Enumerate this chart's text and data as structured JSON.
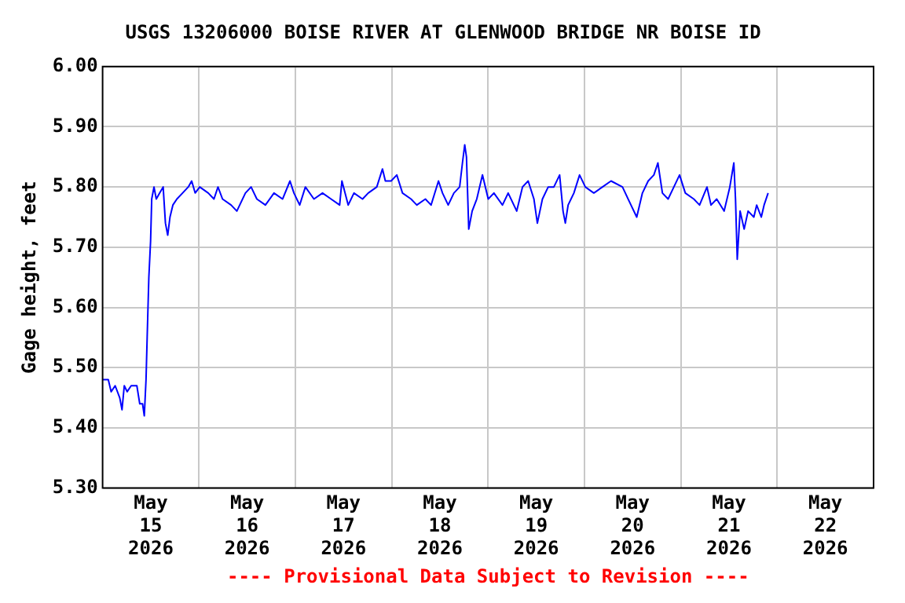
{
  "chart_data": {
    "type": "line",
    "title": "USGS 13206000 BOISE RIVER AT GLENWOOD BRIDGE NR BOISE ID",
    "ylabel": "Gage height, feet",
    "annotations": [
      "---- Provisional Data Subject to Revision ----"
    ],
    "xlim": [
      "2026-05-15T00:00",
      "2026-05-23T00:00"
    ],
    "xticks": [
      {
        "value": "2026-05-15T12:00",
        "label": "May\n15\n2026"
      },
      {
        "value": "2026-05-16T00:00",
        "label": null
      },
      {
        "value": "2026-05-16T12:00",
        "label": "May\n16\n2026"
      },
      {
        "value": "2026-05-17T00:00",
        "label": null
      },
      {
        "value": "2026-05-17T12:00",
        "label": "May\n17\n2026"
      },
      {
        "value": "2026-05-18T00:00",
        "label": null
      },
      {
        "value": "2026-05-18T12:00",
        "label": "May\n18\n2026"
      },
      {
        "value": "2026-05-19T00:00",
        "label": null
      },
      {
        "value": "2026-05-19T12:00",
        "label": "May\n19\n2026"
      },
      {
        "value": "2026-05-20T00:00",
        "label": null
      },
      {
        "value": "2026-05-20T12:00",
        "label": "May\n20\n2026"
      },
      {
        "value": "2026-05-21T00:00",
        "label": null
      },
      {
        "value": "2026-05-21T12:00",
        "label": "May\n21\n2026"
      },
      {
        "value": "2026-05-22T00:00",
        "label": null
      },
      {
        "value": "2026-05-22T12:00",
        "label": "May\n22\n2026"
      }
    ],
    "ylim": [
      5.3,
      6.0
    ],
    "yticks": [
      {
        "value": 5.3,
        "label": "5.30"
      },
      {
        "value": 5.4,
        "label": "5.40"
      },
      {
        "value": 5.5,
        "label": "5.50"
      },
      {
        "value": 5.6,
        "label": "5.60"
      },
      {
        "value": 5.7,
        "label": "5.70"
      },
      {
        "value": 5.8,
        "label": "5.80"
      },
      {
        "value": 5.9,
        "label": "5.90"
      },
      {
        "value": 6.0,
        "label": "6.00"
      }
    ],
    "grid": true,
    "legend": false,
    "marker": "none",
    "line_style": "solid",
    "series": [
      {
        "color": "#0000ff",
        "x": [
          "2026-05-15T00:00",
          "2026-05-15T01:25",
          "2026-05-15T02:08",
          "2026-05-15T03:08",
          "2026-05-15T04:16",
          "2026-05-15T04:50",
          "2026-05-15T05:24",
          "2026-05-15T06:07",
          "2026-05-15T07:07",
          "2026-05-15T08:32",
          "2026-05-15T09:15",
          "2026-05-15T09:57",
          "2026-05-15T10:23",
          "2026-05-15T10:49",
          "2026-05-15T11:06",
          "2026-05-15T11:31",
          "2026-05-15T11:57",
          "2026-05-15T12:14",
          "2026-05-15T12:48",
          "2026-05-15T13:22",
          "2026-05-15T14:13",
          "2026-05-15T15:05",
          "2026-05-15T15:39",
          "2026-05-15T16:13",
          "2026-05-15T16:47",
          "2026-05-15T17:30",
          "2026-05-15T18:30",
          "2026-05-15T19:55",
          "2026-05-15T21:20",
          "2026-05-15T22:11",
          "2026-05-15T23:03",
          "2026-05-16T00:11",
          "2026-05-16T02:19",
          "2026-05-16T03:44",
          "2026-05-16T04:44",
          "2026-05-16T05:52",
          "2026-05-16T08:00",
          "2026-05-16T09:26",
          "2026-05-16T11:34",
          "2026-05-16T12:59",
          "2026-05-16T14:25",
          "2026-05-16T16:33",
          "2026-05-16T18:41",
          "2026-05-16T20:49",
          "2026-05-16T22:40",
          "2026-05-16T23:39",
          "2026-05-17T01:05",
          "2026-05-17T02:30",
          "2026-05-17T04:38",
          "2026-05-17T06:46",
          "2026-05-17T08:54",
          "2026-05-17T11:02",
          "2026-05-17T11:36",
          "2026-05-17T13:10",
          "2026-05-17T14:36",
          "2026-05-17T16:44",
          "2026-05-17T18:09",
          "2026-05-17T20:17",
          "2026-05-17T21:42",
          "2026-05-17T22:25",
          "2026-05-17T23:51",
          "2026-05-18T01:16",
          "2026-05-18T02:41",
          "2026-05-18T04:49",
          "2026-05-18T06:15",
          "2026-05-18T08:23",
          "2026-05-18T09:48",
          "2026-05-18T11:39",
          "2026-05-18T12:39",
          "2026-05-18T14:04",
          "2026-05-18T15:29",
          "2026-05-18T16:55",
          "2026-05-18T17:37",
          "2026-05-18T18:11",
          "2026-05-18T18:37",
          "2026-05-18T19:11",
          "2026-05-18T20:02",
          "2026-05-18T21:11",
          "2026-05-18T22:36",
          "2026-05-19T00:02",
          "2026-05-19T01:27",
          "2026-05-19T03:35",
          "2026-05-19T05:00",
          "2026-05-19T07:08",
          "2026-05-19T08:34",
          "2026-05-19T09:59",
          "2026-05-19T11:25",
          "2026-05-19T12:16",
          "2026-05-19T13:32",
          "2026-05-19T14:58",
          "2026-05-19T16:23",
          "2026-05-19T17:49",
          "2026-05-19T18:40",
          "2026-05-19T19:14",
          "2026-05-19T19:56",
          "2026-05-19T21:22",
          "2026-05-19T22:47",
          "2026-05-20T00:13",
          "2026-05-20T02:20",
          "2026-05-20T04:29",
          "2026-05-20T06:37",
          "2026-05-20T09:28",
          "2026-05-20T11:35",
          "2026-05-20T13:01",
          "2026-05-20T14:26",
          "2026-05-20T15:52",
          "2026-05-20T17:17",
          "2026-05-20T18:17",
          "2026-05-20T19:25",
          "2026-05-20T20:50",
          "2026-05-20T22:16",
          "2026-05-20T23:41",
          "2026-05-21T01:07",
          "2026-05-21T03:14",
          "2026-05-21T04:40",
          "2026-05-21T06:31",
          "2026-05-21T07:31",
          "2026-05-21T08:56",
          "2026-05-21T10:47",
          "2026-05-21T12:12",
          "2026-05-21T13:12",
          "2026-05-21T13:37",
          "2026-05-21T14:03",
          "2026-05-21T14:46",
          "2026-05-21T15:46",
          "2026-05-21T16:45",
          "2026-05-21T18:11",
          "2026-05-21T18:53",
          "2026-05-21T20:02",
          "2026-05-21T20:44",
          "2026-05-21T21:44"
        ],
        "values": [
          5.48,
          5.48,
          5.46,
          5.47,
          5.45,
          5.43,
          5.47,
          5.46,
          5.47,
          5.47,
          5.44,
          5.44,
          5.42,
          5.48,
          5.55,
          5.65,
          5.71,
          5.78,
          5.8,
          5.78,
          5.79,
          5.8,
          5.74,
          5.72,
          5.75,
          5.77,
          5.78,
          5.79,
          5.8,
          5.81,
          5.79,
          5.8,
          5.79,
          5.78,
          5.8,
          5.78,
          5.77,
          5.76,
          5.79,
          5.8,
          5.78,
          5.77,
          5.79,
          5.78,
          5.81,
          5.79,
          5.77,
          5.8,
          5.78,
          5.79,
          5.78,
          5.77,
          5.81,
          5.77,
          5.79,
          5.78,
          5.79,
          5.8,
          5.83,
          5.81,
          5.81,
          5.82,
          5.79,
          5.78,
          5.77,
          5.78,
          5.77,
          5.81,
          5.79,
          5.77,
          5.79,
          5.8,
          5.84,
          5.87,
          5.85,
          5.73,
          5.76,
          5.78,
          5.82,
          5.78,
          5.79,
          5.77,
          5.79,
          5.76,
          5.8,
          5.81,
          5.78,
          5.74,
          5.78,
          5.8,
          5.8,
          5.82,
          5.76,
          5.74,
          5.77,
          5.79,
          5.82,
          5.8,
          5.79,
          5.8,
          5.81,
          5.8,
          5.77,
          5.75,
          5.79,
          5.81,
          5.82,
          5.84,
          5.79,
          5.78,
          5.8,
          5.82,
          5.79,
          5.78,
          5.77,
          5.8,
          5.77,
          5.78,
          5.76,
          5.8,
          5.84,
          5.78,
          5.68,
          5.76,
          5.73,
          5.76,
          5.75,
          5.77,
          5.75,
          5.77,
          5.79
        ]
      }
    ]
  }
}
